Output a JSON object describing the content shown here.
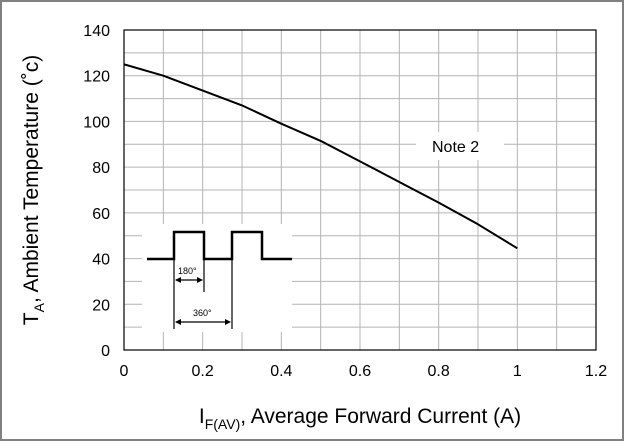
{
  "chart_data": {
    "type": "line",
    "title": "",
    "xlabel": {
      "main": "I",
      "sub": "F(AV)",
      "rest": ", Average Forward Current (A)"
    },
    "ylabel": {
      "main": "T",
      "sub": "A",
      "rest": ", Ambient Temperature (˚c)"
    },
    "xlim": [
      0,
      1.2
    ],
    "ylim": [
      0,
      140
    ],
    "x_ticks": [
      "0",
      "0.2",
      "0.4",
      "0.6",
      "0.8",
      "1",
      "1.2"
    ],
    "y_ticks": [
      "0",
      "20",
      "40",
      "60",
      "80",
      "100",
      "120",
      "140"
    ],
    "grid": true,
    "series": [
      {
        "x": [
          0,
          0.1,
          0.2,
          0.3,
          0.4,
          0.5,
          0.6,
          0.7,
          0.8,
          0.9,
          1.0
        ],
        "y": [
          125,
          120,
          113.5,
          107,
          99,
          91.5,
          82.5,
          73.5,
          64.5,
          55,
          44.5
        ]
      }
    ],
    "annotations": [
      {
        "text": "Note 2",
        "x": 0.8,
        "y": 89
      }
    ],
    "inset": {
      "labels": [
        "180°",
        "360°"
      ],
      "description": "rectangular pulse waveform"
    }
  }
}
